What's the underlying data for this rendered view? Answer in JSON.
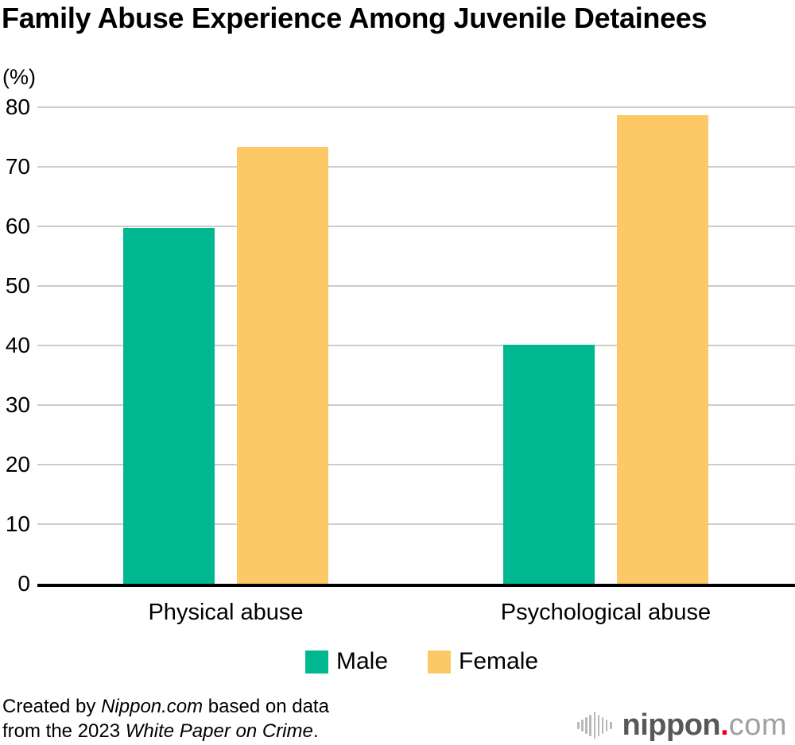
{
  "title": "Family Abuse Experience Among Juvenile Detainees",
  "unit_label": "(%)",
  "chart_data": {
    "type": "bar",
    "categories": [
      "Physical abuse",
      "Psychological abuse"
    ],
    "series": [
      {
        "name": "Male",
        "color": "#00b890",
        "values": [
          59.7,
          40.1
        ]
      },
      {
        "name": "Female",
        "color": "#fcc966",
        "values": [
          73.3,
          78.7
        ]
      }
    ],
    "title": "Family Abuse Experience Among Juvenile Detainees",
    "xlabel": "",
    "ylabel": "(%)",
    "ylim": [
      0,
      80
    ],
    "yticks": [
      0,
      10,
      20,
      30,
      40,
      50,
      60,
      70,
      80
    ],
    "grid": true,
    "legend_position": "bottom",
    "gridline_color": "#cccccc",
    "axis_color": "#000000"
  },
  "footer": {
    "line1_prefix": "Created by ",
    "line1_italic": "Nippon.com",
    "line1_suffix": " based on data",
    "line2_prefix": "from the 2023 ",
    "line2_italic": "White Paper on Crime",
    "line2_suffix": "."
  },
  "logo": {
    "brand": "nippon",
    "dot": ".",
    "tld": "com",
    "brand_color": "#595757",
    "dot_color": "#e60012",
    "tld_color": "#9fa0a0"
  }
}
